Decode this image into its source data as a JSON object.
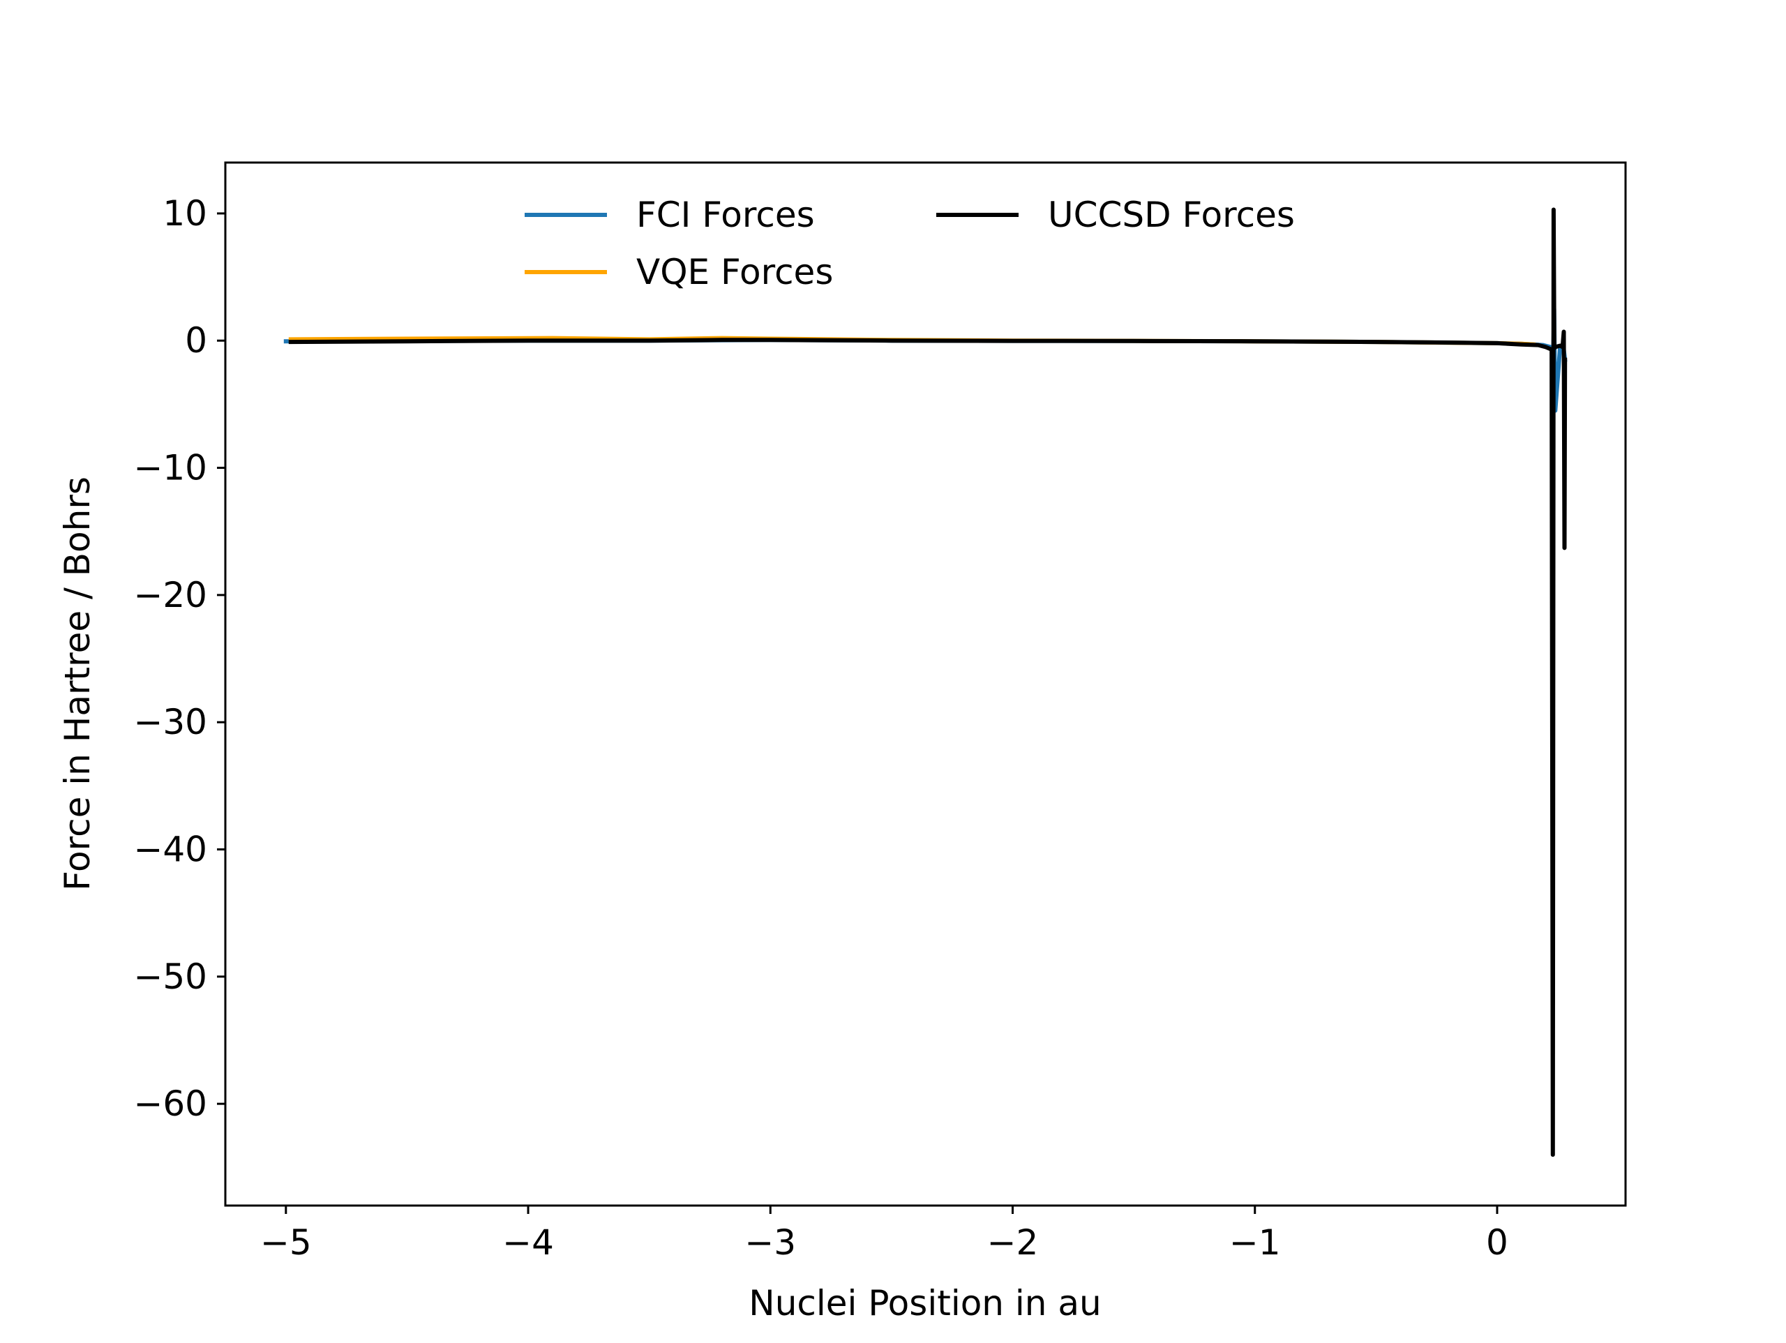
{
  "colors": {
    "fci": "#1f77b4",
    "vqe": "#ffa500",
    "uccsd": "#000000",
    "axes": "#000000",
    "background": "#ffffff"
  },
  "chart_data": {
    "type": "line",
    "title": "",
    "xlabel": "Nuclei Position in au",
    "ylabel": "Force in Hartree / Bohrs",
    "xlim": [
      -5.25,
      0.53
    ],
    "ylim": [
      -68,
      14
    ],
    "xticks": [
      -5,
      -4,
      -3,
      -2,
      -1,
      0
    ],
    "xtick_labels": [
      "−5",
      "−4",
      "−3",
      "−2",
      "−1",
      "0"
    ],
    "yticks": [
      10,
      0,
      -10,
      -20,
      -30,
      -40,
      -50,
      -60
    ],
    "ytick_labels": [
      "10",
      "0",
      "−10",
      "−20",
      "−30",
      "−40",
      "−50",
      "−60"
    ],
    "grid": false,
    "legend": {
      "placement": "upper center",
      "columns": 2,
      "entries": [
        "FCI Forces",
        "VQE Forces",
        "UCCSD Forces"
      ]
    },
    "series": [
      {
        "name": "FCI Forces",
        "color_key": "fci",
        "x": [
          -5.0,
          -4.5,
          -4.0,
          -3.5,
          -3.0,
          -2.5,
          -2.0,
          -1.5,
          -1.0,
          -0.5,
          0.0,
          0.1,
          0.15,
          0.19,
          0.22,
          0.232,
          0.235,
          0.24,
          0.26,
          0.275,
          0.28
        ],
        "y": [
          -0.05,
          -0.03,
          0.0,
          0.0,
          0.05,
          0.0,
          -0.02,
          -0.03,
          -0.05,
          -0.1,
          -0.2,
          -0.25,
          -0.3,
          -0.35,
          -0.5,
          -0.8,
          2.5,
          -5.5,
          -0.5,
          -0.7,
          -1.5
        ]
      },
      {
        "name": "VQE Forces",
        "color_key": "vqe",
        "x": [
          -4.98,
          -4.5,
          -3.9,
          -3.5,
          -3.2,
          -3.0,
          -2.5,
          -2.0,
          -1.5,
          -1.0,
          -0.5,
          0.0,
          0.1,
          0.15
        ],
        "y": [
          0.1,
          0.15,
          0.2,
          0.1,
          0.2,
          0.15,
          0.05,
          0.0,
          -0.02,
          -0.05,
          -0.1,
          -0.2,
          -0.25,
          -0.3
        ]
      },
      {
        "name": "UCCSD Forces",
        "color_key": "uccsd",
        "x": [
          -4.98,
          -4.5,
          -4.0,
          -3.5,
          -3.2,
          -3.0,
          -2.5,
          -2.0,
          -1.5,
          -1.0,
          -0.5,
          -0.2,
          0.0,
          0.1,
          0.17,
          0.2,
          0.225,
          0.23,
          0.233,
          0.236,
          0.24,
          0.26,
          0.27,
          0.275,
          0.278,
          0.28
        ],
        "y": [
          -0.1,
          -0.05,
          0.0,
          0.0,
          0.05,
          0.05,
          0.0,
          -0.02,
          -0.03,
          -0.05,
          -0.1,
          -0.15,
          -0.2,
          -0.3,
          -0.35,
          -0.5,
          -0.7,
          -64.0,
          10.3,
          -0.6,
          -0.5,
          -0.4,
          -0.5,
          0.7,
          -16.3,
          -1.5
        ]
      }
    ]
  }
}
